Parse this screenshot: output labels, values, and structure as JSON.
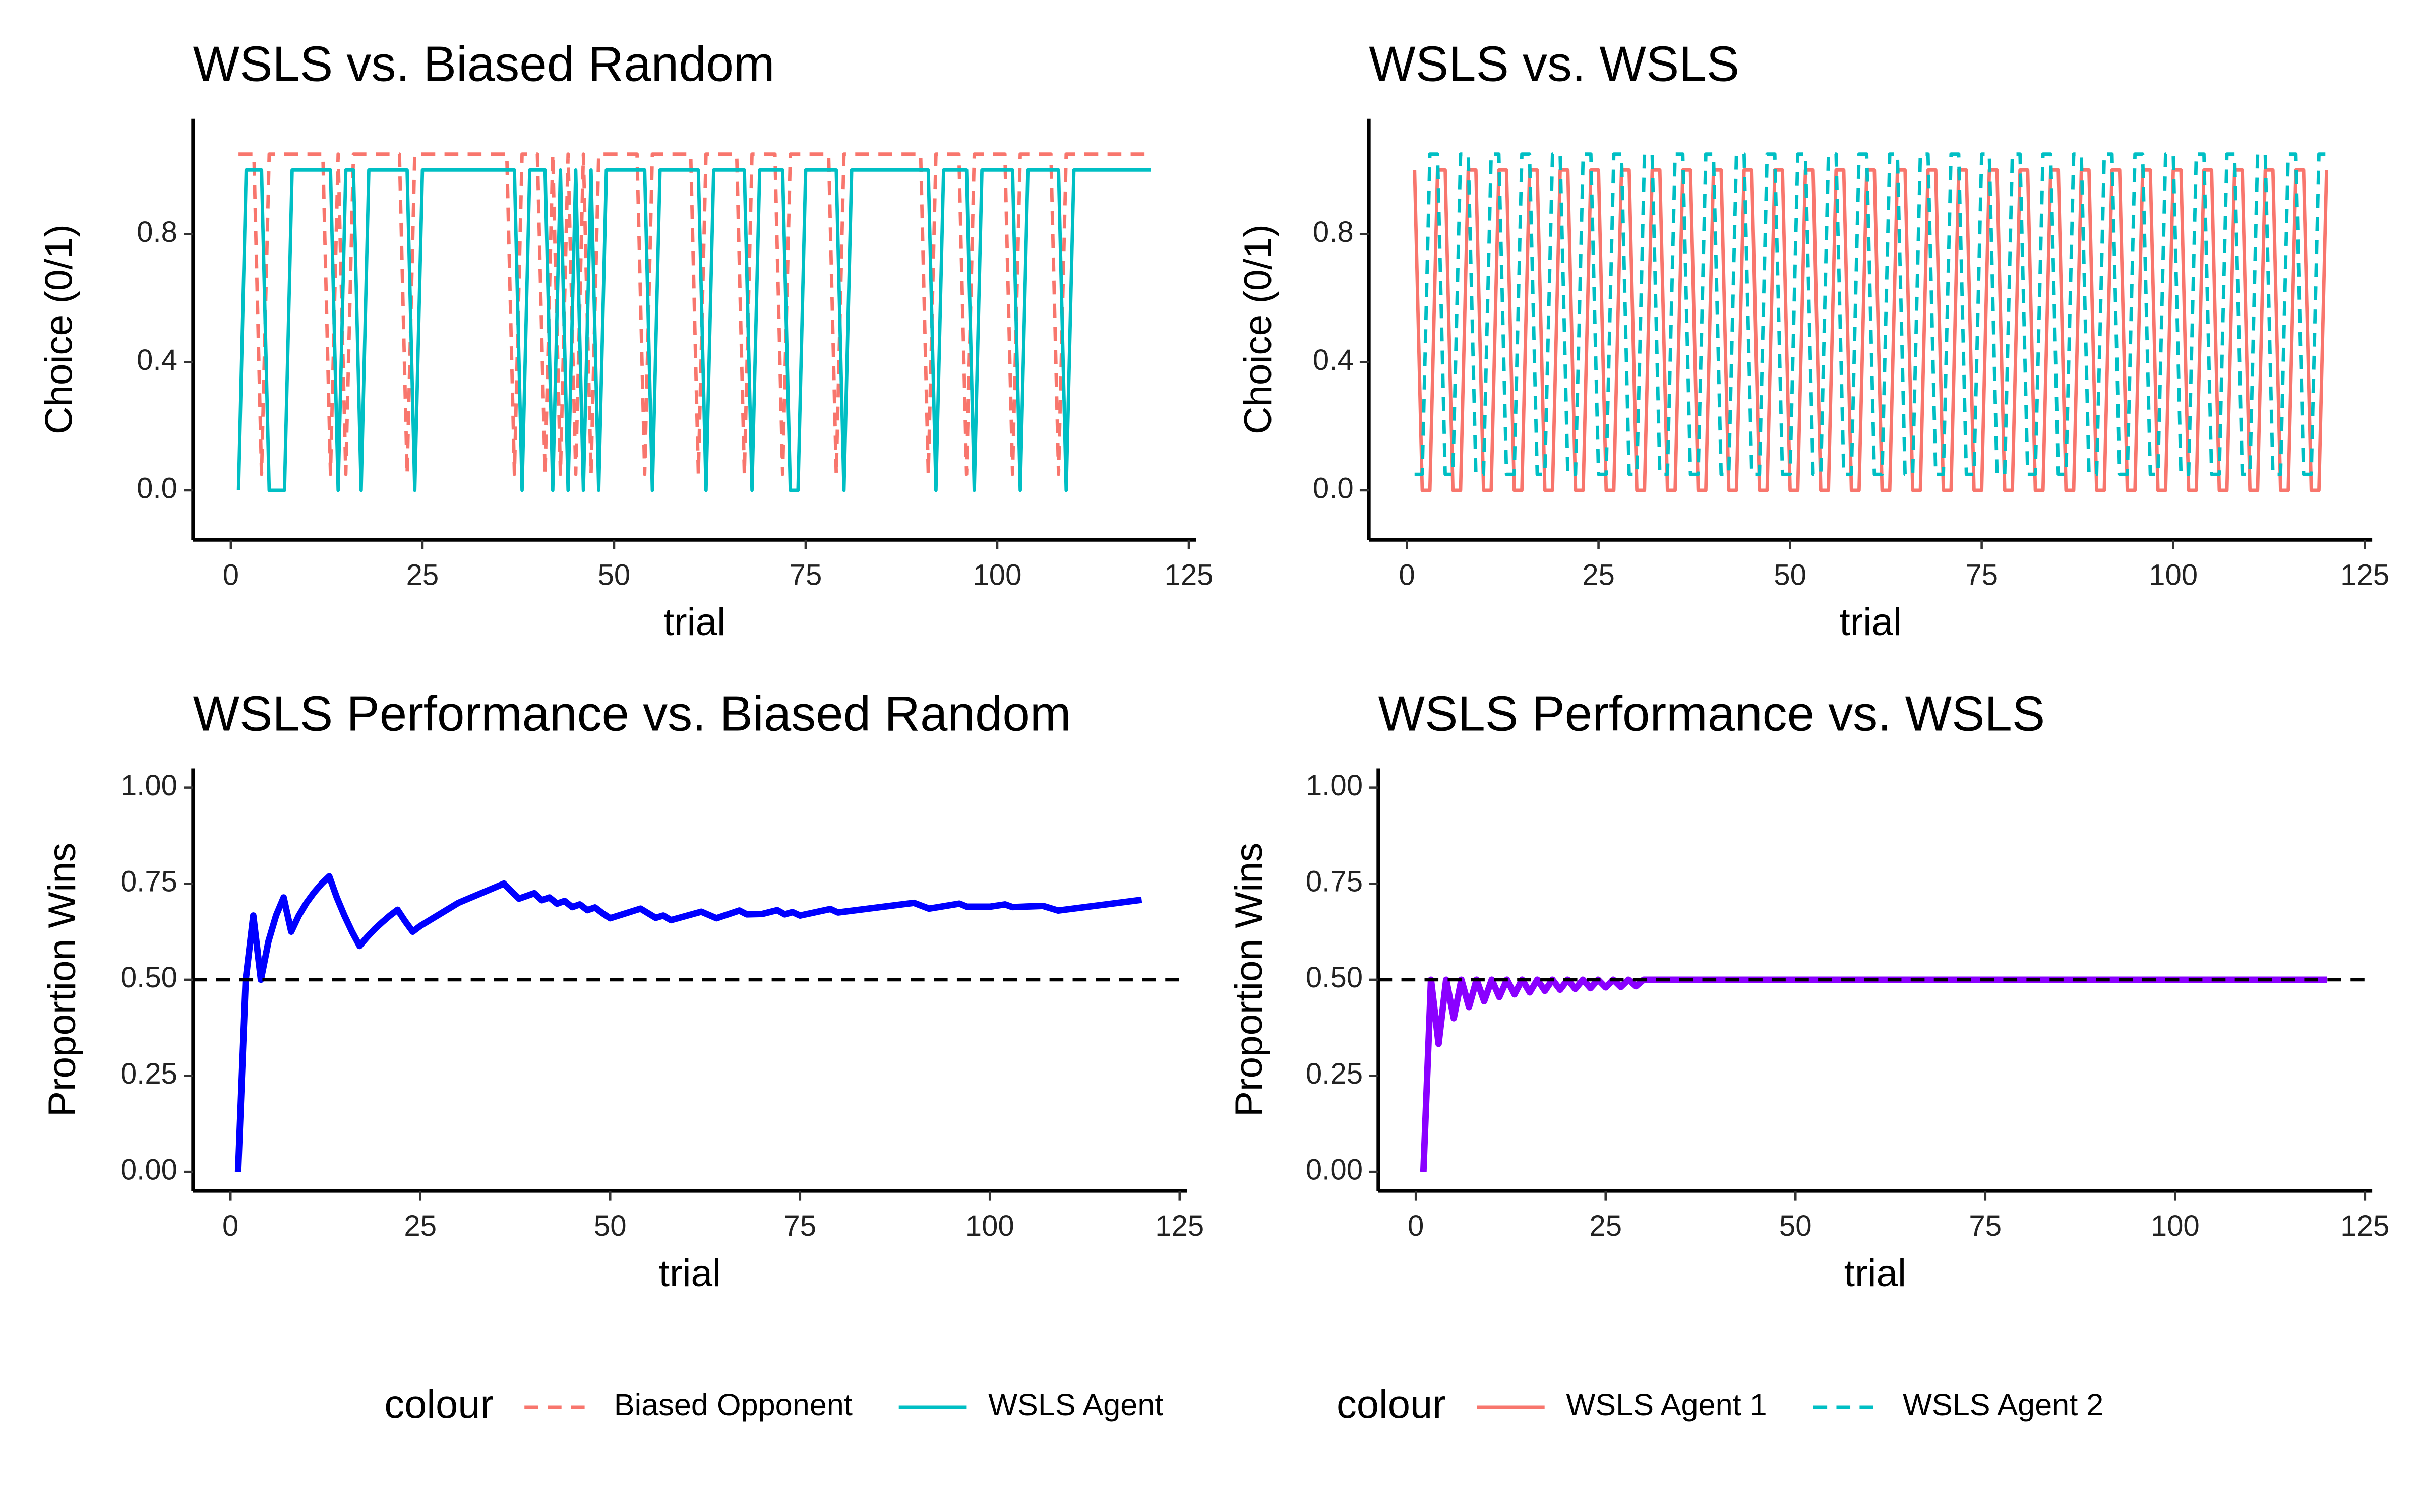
{
  "chart_data": [
    {
      "type": "line",
      "title": "WSLS vs. Biased Random",
      "xlabel": "trial",
      "ylabel": "Choice (0/1)",
      "xlim": [
        -4.95,
        125.95
      ],
      "ylim": [
        -0.155,
        1.16
      ],
      "xticks": [
        0,
        25,
        50,
        75,
        100,
        125
      ],
      "yticks": [
        {
          "value": 0,
          "label": "0.0"
        },
        {
          "value": 0.4,
          "label": "0.4"
        },
        {
          "value": 0.8,
          "label": "0.8"
        }
      ],
      "legend_title": "colour",
      "series": [
        {
          "name": "Biased Opponent",
          "color": "#f8766d",
          "dash": true,
          "x": [
            1,
            3,
            4,
            5,
            12,
            13,
            14,
            15,
            16,
            22,
            23,
            24,
            36,
            37,
            38,
            40,
            41,
            42,
            43,
            44,
            45,
            46,
            47,
            48,
            53,
            54,
            55,
            60,
            61,
            62,
            66,
            67,
            68,
            71,
            72,
            73,
            78,
            79,
            80,
            90,
            91,
            92,
            95,
            96,
            97,
            101,
            102,
            103,
            107,
            108,
            109,
            120
          ],
          "values": [
            1.05,
            1.05,
            0.05,
            1.05,
            1.05,
            0.05,
            1.05,
            0.05,
            1.05,
            1.05,
            0.05,
            1.05,
            1.05,
            0.05,
            1.05,
            1.05,
            0.05,
            1.05,
            0.05,
            1.05,
            0.05,
            1.05,
            0.05,
            1.05,
            1.05,
            0.05,
            1.05,
            1.05,
            0.05,
            1.05,
            1.05,
            0.05,
            1.05,
            1.05,
            0.05,
            1.05,
            1.05,
            0.05,
            1.05,
            1.05,
            0.05,
            1.05,
            1.05,
            0.05,
            1.05,
            1.05,
            0.05,
            1.05,
            1.05,
            0.05,
            1.05,
            1.05
          ]
        },
        {
          "name": "WSLS Agent",
          "color": "#00bfc4",
          "dash": false,
          "x": [
            1,
            2,
            4,
            5,
            7,
            8,
            13,
            14,
            15,
            16,
            17,
            18,
            23,
            24,
            25,
            37,
            38,
            39,
            41,
            42,
            43,
            44,
            45,
            46,
            47,
            48,
            49,
            54,
            55,
            56,
            61,
            62,
            63,
            67,
            68,
            69,
            72,
            73,
            74,
            75,
            79,
            80,
            81,
            91,
            92,
            93,
            96,
            97,
            98,
            102,
            103,
            104,
            108,
            109,
            110,
            120
          ],
          "values": [
            0,
            1,
            1,
            0,
            0,
            1,
            1,
            0,
            1,
            1,
            0,
            1,
            1,
            0,
            1,
            1,
            0,
            1,
            1,
            0,
            1,
            0,
            1,
            0,
            1,
            0,
            1,
            1,
            0,
            1,
            1,
            0,
            1,
            1,
            0,
            1,
            1,
            0,
            0,
            1,
            1,
            0,
            1,
            1,
            0,
            1,
            1,
            0,
            1,
            1,
            0,
            1,
            1,
            0,
            1,
            1
          ]
        }
      ]
    },
    {
      "type": "line",
      "title": "WSLS vs. WSLS",
      "xlabel": "trial",
      "ylabel": "Choice (0/1)",
      "xlim": [
        -4.95,
        125.95
      ],
      "ylim": [
        -0.155,
        1.16
      ],
      "xticks": [
        0,
        25,
        50,
        75,
        100,
        125
      ],
      "yticks": [
        {
          "value": 0,
          "label": "0.0"
        },
        {
          "value": 0.4,
          "label": "0.4"
        },
        {
          "value": 0.8,
          "label": "0.8"
        }
      ],
      "legend_title": "colour",
      "series": [
        {
          "name": "WSLS Agent 1",
          "color": "#f8766d",
          "dash": false,
          "x": [
            1,
            2,
            3,
            4,
            5,
            6,
            7,
            8,
            9,
            10,
            11,
            12,
            13,
            14,
            15,
            16,
            17,
            18,
            19,
            20,
            21,
            22,
            23,
            24,
            25,
            26,
            27,
            28,
            29,
            30,
            31,
            32,
            33,
            34,
            35,
            36,
            37,
            38,
            39,
            40,
            41,
            42,
            43,
            44,
            45,
            46,
            47,
            48,
            49,
            50,
            51,
            52,
            53,
            54,
            55,
            56,
            57,
            58,
            59,
            60,
            61,
            62,
            63,
            64,
            65,
            66,
            67,
            68,
            69,
            70,
            71,
            72,
            73,
            74,
            75,
            76,
            77,
            78,
            79,
            80,
            81,
            82,
            83,
            84,
            85,
            86,
            87,
            88,
            89,
            90,
            91,
            92,
            93,
            94,
            95,
            96,
            97,
            98,
            99,
            100,
            101,
            102,
            103,
            104,
            105,
            106,
            107,
            108,
            109,
            110,
            111,
            112,
            113,
            114,
            115,
            116,
            117,
            118,
            119,
            120
          ],
          "values": [
            1,
            0,
            0,
            1,
            1,
            0,
            0,
            1,
            1,
            0,
            0,
            1,
            1,
            0,
            0,
            1,
            1,
            0,
            0,
            1,
            1,
            0,
            0,
            1,
            1,
            0,
            0,
            1,
            1,
            0,
            0,
            1,
            1,
            0,
            0,
            1,
            1,
            0,
            0,
            1,
            1,
            0,
            0,
            1,
            1,
            0,
            0,
            1,
            1,
            0,
            0,
            1,
            1,
            0,
            0,
            1,
            1,
            0,
            0,
            1,
            1,
            0,
            0,
            1,
            1,
            0,
            0,
            1,
            1,
            0,
            0,
            1,
            1,
            0,
            0,
            1,
            1,
            0,
            0,
            1,
            1,
            0,
            0,
            1,
            1,
            0,
            0,
            1,
            1,
            0,
            0,
            1,
            1,
            0,
            0,
            1,
            1,
            0,
            0,
            1,
            1,
            0,
            0,
            1,
            1,
            0,
            0,
            1,
            1,
            0,
            0,
            1,
            1,
            0,
            0,
            1,
            1,
            0,
            0,
            1
          ]
        },
        {
          "name": "WSLS Agent 2",
          "color": "#00bfc4",
          "dash": true,
          "x": [
            1,
            2,
            3,
            4,
            5,
            6,
            7,
            8,
            9,
            10,
            11,
            12,
            13,
            14,
            15,
            16,
            17,
            18,
            19,
            20,
            21,
            22,
            23,
            24,
            25,
            26,
            27,
            28,
            29,
            30,
            31,
            32,
            33,
            34,
            35,
            36,
            37,
            38,
            39,
            40,
            41,
            42,
            43,
            44,
            45,
            46,
            47,
            48,
            49,
            50,
            51,
            52,
            53,
            54,
            55,
            56,
            57,
            58,
            59,
            60,
            61,
            62,
            63,
            64,
            65,
            66,
            67,
            68,
            69,
            70,
            71,
            72,
            73,
            74,
            75,
            76,
            77,
            78,
            79,
            80,
            81,
            82,
            83,
            84,
            85,
            86,
            87,
            88,
            89,
            90,
            91,
            92,
            93,
            94,
            95,
            96,
            97,
            98,
            99,
            100,
            101,
            102,
            103,
            104,
            105,
            106,
            107,
            108,
            109,
            110,
            111,
            112,
            113,
            114,
            115,
            116,
            117,
            118,
            119,
            120
          ],
          "values": [
            0.05,
            0.05,
            1.05,
            1.05,
            0.05,
            0.05,
            1.05,
            1.05,
            0.05,
            0.05,
            1.05,
            1.05,
            0.05,
            0.05,
            1.05,
            1.05,
            0.05,
            0.05,
            1.05,
            1.05,
            0.05,
            0.05,
            1.05,
            1.05,
            0.05,
            0.05,
            1.05,
            1.05,
            0.05,
            0.05,
            1.05,
            1.05,
            0.05,
            0.05,
            1.05,
            1.05,
            0.05,
            0.05,
            1.05,
            1.05,
            0.05,
            0.05,
            1.05,
            1.05,
            0.05,
            0.05,
            1.05,
            1.05,
            0.05,
            0.05,
            1.05,
            1.05,
            0.05,
            0.05,
            1.05,
            1.05,
            0.05,
            0.05,
            1.05,
            1.05,
            0.05,
            0.05,
            1.05,
            1.05,
            0.05,
            0.05,
            1.05,
            1.05,
            0.05,
            0.05,
            1.05,
            1.05,
            0.05,
            0.05,
            1.05,
            1.05,
            0.05,
            0.05,
            1.05,
            1.05,
            0.05,
            0.05,
            1.05,
            1.05,
            0.05,
            0.05,
            1.05,
            1.05,
            0.05,
            0.05,
            1.05,
            1.05,
            0.05,
            0.05,
            1.05,
            1.05,
            0.05,
            0.05,
            1.05,
            1.05,
            0.05,
            0.05,
            1.05,
            1.05,
            0.05,
            0.05,
            1.05,
            1.05,
            0.05,
            0.05,
            1.05,
            1.05,
            0.05,
            0.05,
            1.05,
            1.05,
            0.05,
            0.05,
            1.05,
            1.05
          ]
        }
      ]
    },
    {
      "type": "line",
      "title": "WSLS Performance vs. Biased Random",
      "xlabel": "trial",
      "ylabel": "Proportion Wins",
      "xlim": [
        -4.95,
        125.95
      ],
      "ylim": [
        -0.05,
        1.05
      ],
      "xticks": [
        0,
        25,
        50,
        75,
        100,
        125
      ],
      "yticks": [
        {
          "value": 0,
          "label": "0.00"
        },
        {
          "value": 0.25,
          "label": "0.25"
        },
        {
          "value": 0.5,
          "label": "0.50"
        },
        {
          "value": 0.75,
          "label": "0.75"
        },
        {
          "value": 1,
          "label": "1.00"
        }
      ],
      "hline": 0.5,
      "series": [
        {
          "color": "#0000ff",
          "dash": false,
          "x": [
            1,
            2,
            3,
            4,
            5,
            6,
            7,
            8,
            9,
            10,
            11,
            12,
            13,
            14,
            15,
            16,
            17,
            18,
            19,
            20,
            21,
            22,
            23,
            24,
            25,
            30,
            36,
            37,
            38,
            40,
            41,
            42,
            43,
            44,
            45,
            46,
            47,
            48,
            49,
            50,
            54,
            55,
            56,
            57,
            58,
            62,
            64,
            67,
            68,
            70,
            72,
            73,
            74,
            75,
            79,
            80,
            90,
            92,
            96,
            97,
            100,
            102,
            103,
            107,
            109,
            120
          ],
          "values": [
            0,
            0.5,
            0.667,
            0.5,
            0.6,
            0.667,
            0.714,
            0.625,
            0.667,
            0.7,
            0.727,
            0.75,
            0.769,
            0.714,
            0.667,
            0.625,
            0.588,
            0.611,
            0.632,
            0.65,
            0.667,
            0.682,
            0.652,
            0.625,
            0.64,
            0.7,
            0.75,
            0.73,
            0.711,
            0.725,
            0.707,
            0.714,
            0.698,
            0.705,
            0.689,
            0.696,
            0.681,
            0.688,
            0.673,
            0.66,
            0.685,
            0.673,
            0.661,
            0.667,
            0.655,
            0.677,
            0.66,
            0.68,
            0.67,
            0.671,
            0.681,
            0.67,
            0.676,
            0.667,
            0.684,
            0.675,
            0.7,
            0.685,
            0.698,
            0.69,
            0.69,
            0.696,
            0.689,
            0.692,
            0.68,
            0.708
          ]
        }
      ]
    },
    {
      "type": "line",
      "title": "WSLS Performance vs. WSLS",
      "xlabel": "trial",
      "ylabel": "Proportion Wins",
      "xlim": [
        -4.95,
        125.95
      ],
      "ylim": [
        -0.05,
        1.05
      ],
      "xticks": [
        0,
        25,
        50,
        75,
        100,
        125
      ],
      "yticks": [
        {
          "value": 0,
          "label": "0.00"
        },
        {
          "value": 0.25,
          "label": "0.25"
        },
        {
          "value": 0.5,
          "label": "0.50"
        },
        {
          "value": 0.75,
          "label": "0.75"
        },
        {
          "value": 1,
          "label": "1.00"
        }
      ],
      "hline": 0.5,
      "series": [
        {
          "color": "#8a00ff",
          "dash": false,
          "x": [
            1,
            2,
            3,
            4,
            5,
            6,
            7,
            8,
            9,
            10,
            11,
            12,
            13,
            14,
            15,
            16,
            17,
            18,
            19,
            20,
            21,
            22,
            23,
            24,
            25,
            26,
            27,
            28,
            29,
            30,
            120
          ],
          "values": [
            0,
            0.5,
            0.333,
            0.5,
            0.4,
            0.5,
            0.429,
            0.5,
            0.444,
            0.5,
            0.455,
            0.5,
            0.462,
            0.5,
            0.467,
            0.5,
            0.471,
            0.5,
            0.474,
            0.5,
            0.476,
            0.5,
            0.478,
            0.5,
            0.48,
            0.5,
            0.481,
            0.5,
            0.483,
            0.5,
            0.5
          ]
        }
      ]
    }
  ]
}
